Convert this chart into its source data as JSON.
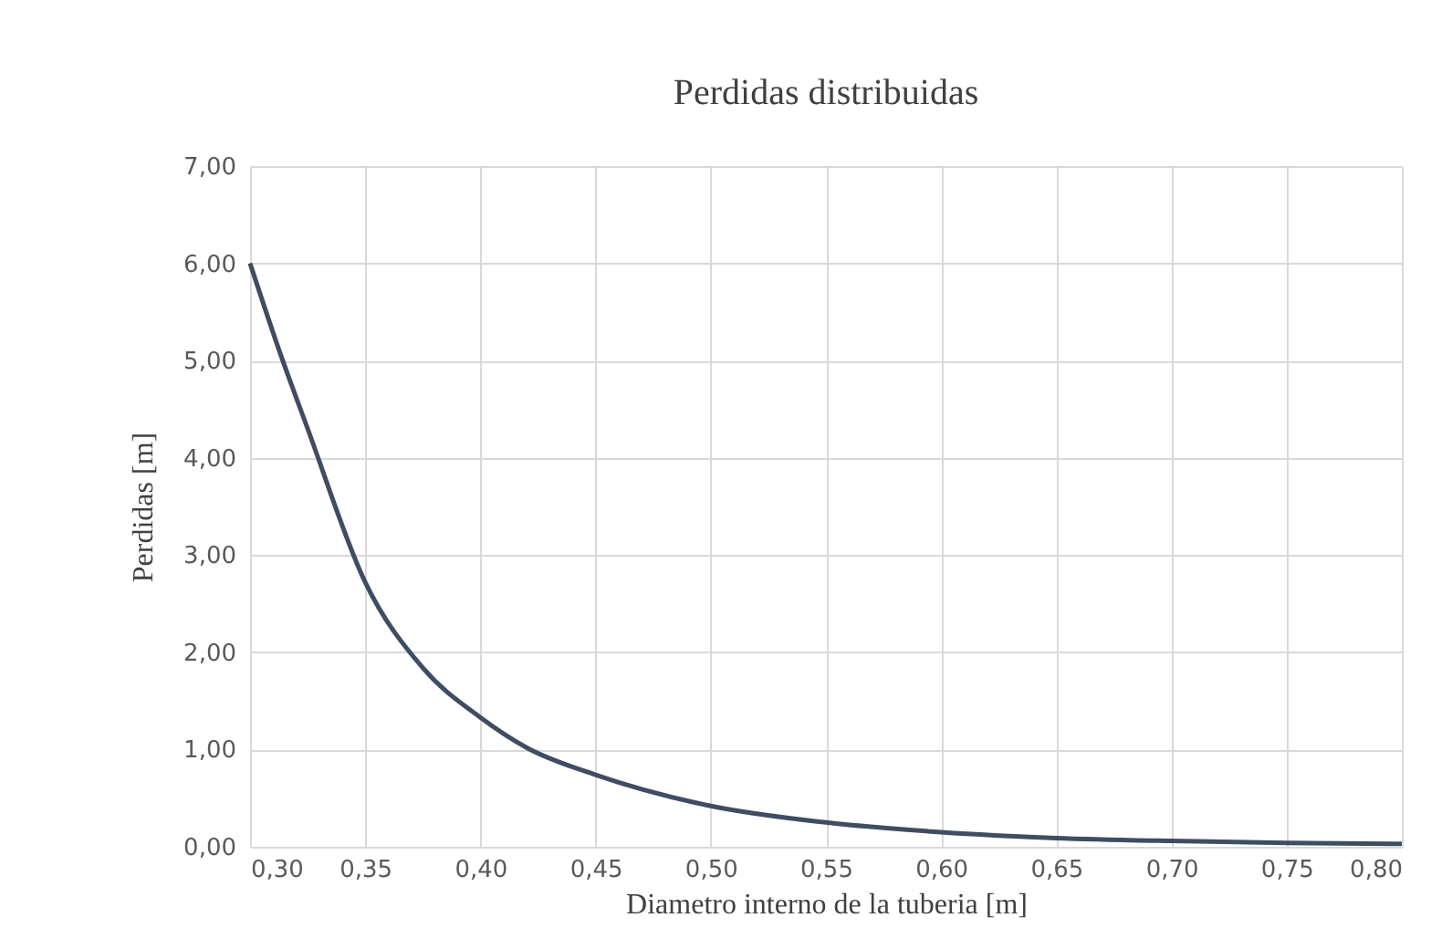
{
  "chart_data": {
    "type": "line",
    "title": "Perdidas  distribuidas",
    "xlabel": "Diametro interno de la tuberia [m]",
    "ylabel": "Perdidas  [m]",
    "x": [
      0.3,
      0.313,
      0.325,
      0.35,
      0.375,
      0.4,
      0.42,
      0.45,
      0.5,
      0.55,
      0.6,
      0.65,
      0.7,
      0.75,
      0.8
    ],
    "series": [
      {
        "color": "#3f4d63",
        "values": [
          6.0,
          5.08,
          4.3,
          2.72,
          1.84,
          1.33,
          1.02,
          0.74,
          0.42,
          0.25,
          0.15,
          0.09,
          0.06,
          0.04,
          0.03
        ]
      }
    ],
    "xlim": [
      0.3,
      0.8
    ],
    "xticks": [
      {
        "value": 0.3,
        "label": "0,30"
      },
      {
        "value": 0.35,
        "label": "0,35"
      },
      {
        "value": 0.4,
        "label": "0,40"
      },
      {
        "value": 0.45,
        "label": "0,45"
      },
      {
        "value": 0.5,
        "label": "0,50"
      },
      {
        "value": 0.55,
        "label": "0,55"
      },
      {
        "value": 0.6,
        "label": "0,60"
      },
      {
        "value": 0.65,
        "label": "0,65"
      },
      {
        "value": 0.7,
        "label": "0,70"
      },
      {
        "value": 0.75,
        "label": "0,75"
      },
      {
        "value": 0.8,
        "label": "0,80"
      }
    ],
    "ylim": [
      0,
      7
    ],
    "yticks": [
      {
        "value": 0,
        "label": "0,00"
      },
      {
        "value": 1,
        "label": "1,00"
      },
      {
        "value": 2,
        "label": "2,00"
      },
      {
        "value": 3,
        "label": "3,00"
      },
      {
        "value": 4,
        "label": "4,00"
      },
      {
        "value": 5,
        "label": "5,00"
      },
      {
        "value": 6,
        "label": "6,00"
      },
      {
        "value": 7,
        "label": "7,00"
      }
    ],
    "grid": true,
    "legend": false,
    "marker": "none",
    "line_style": "solid"
  }
}
